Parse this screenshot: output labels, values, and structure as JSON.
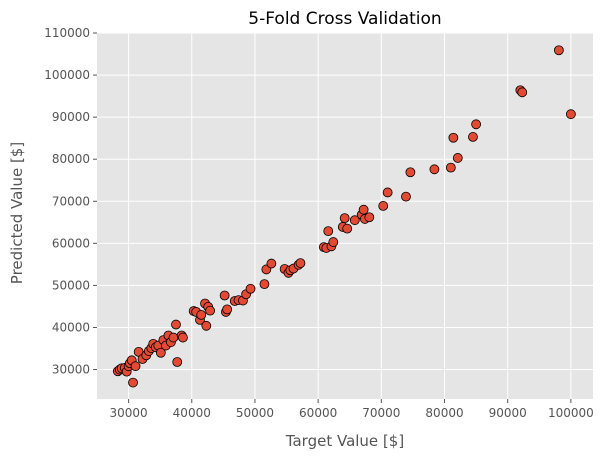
{
  "chart_data": {
    "type": "scatter",
    "title": "5-Fold Cross Validation",
    "xlabel": "Target Value [$]",
    "ylabel": "Predicted Value [$]",
    "xlim": [
      25000,
      103500
    ],
    "ylim": [
      23000,
      110000
    ],
    "xticks": [
      30000,
      40000,
      50000,
      60000,
      70000,
      80000,
      90000,
      100000
    ],
    "yticks": [
      30000,
      40000,
      50000,
      60000,
      70000,
      80000,
      90000,
      100000,
      110000
    ],
    "grid": true,
    "style": {
      "background": "#e5e5e5",
      "grid_color": "#ffffff",
      "marker_fill": "#e24a33",
      "marker_edge": "#000000"
    },
    "points": [
      [
        28300,
        29600
      ],
      [
        28600,
        30000
      ],
      [
        28900,
        30300
      ],
      [
        29400,
        30400
      ],
      [
        29700,
        29500
      ],
      [
        30000,
        30800
      ],
      [
        30200,
        31500
      ],
      [
        30500,
        32200
      ],
      [
        30700,
        26900
      ],
      [
        31100,
        30800
      ],
      [
        31600,
        34200
      ],
      [
        32200,
        32500
      ],
      [
        32800,
        33400
      ],
      [
        33200,
        34400
      ],
      [
        33600,
        35100
      ],
      [
        33900,
        36100
      ],
      [
        34300,
        35300
      ],
      [
        34700,
        35700
      ],
      [
        35100,
        34000
      ],
      [
        35500,
        37000
      ],
      [
        35900,
        35700
      ],
      [
        36300,
        38100
      ],
      [
        36700,
        36500
      ],
      [
        37100,
        37600
      ],
      [
        37500,
        40700
      ],
      [
        37700,
        31800
      ],
      [
        38400,
        38100
      ],
      [
        38600,
        37600
      ],
      [
        40300,
        43900
      ],
      [
        40700,
        43700
      ],
      [
        41300,
        41800
      ],
      [
        41500,
        43000
      ],
      [
        42100,
        45700
      ],
      [
        42300,
        40400
      ],
      [
        42600,
        44900
      ],
      [
        42900,
        44000
      ],
      [
        45200,
        47600
      ],
      [
        45400,
        43700
      ],
      [
        45600,
        44300
      ],
      [
        46800,
        46300
      ],
      [
        47400,
        46500
      ],
      [
        48100,
        46400
      ],
      [
        48600,
        47900
      ],
      [
        49300,
        49200
      ],
      [
        51500,
        50300
      ],
      [
        51800,
        53800
      ],
      [
        52600,
        55200
      ],
      [
        54700,
        53900
      ],
      [
        55300,
        53000
      ],
      [
        55600,
        53600
      ],
      [
        56100,
        54000
      ],
      [
        56900,
        54900
      ],
      [
        57200,
        55300
      ],
      [
        60900,
        59100
      ],
      [
        61300,
        58900
      ],
      [
        61600,
        62900
      ],
      [
        62100,
        59300
      ],
      [
        62400,
        60300
      ],
      [
        63900,
        63900
      ],
      [
        64200,
        66000
      ],
      [
        64600,
        63500
      ],
      [
        65800,
        65500
      ],
      [
        66900,
        66800
      ],
      [
        67200,
        68000
      ],
      [
        67400,
        65800
      ],
      [
        68100,
        66200
      ],
      [
        70300,
        68900
      ],
      [
        71000,
        72100
      ],
      [
        73900,
        71100
      ],
      [
        74600,
        76900
      ],
      [
        78400,
        77600
      ],
      [
        81000,
        78000
      ],
      [
        81400,
        85100
      ],
      [
        82100,
        80300
      ],
      [
        84500,
        85300
      ],
      [
        85000,
        88300
      ],
      [
        92000,
        96400
      ],
      [
        92300,
        95900
      ],
      [
        98100,
        105900
      ],
      [
        100000,
        90700
      ]
    ]
  }
}
